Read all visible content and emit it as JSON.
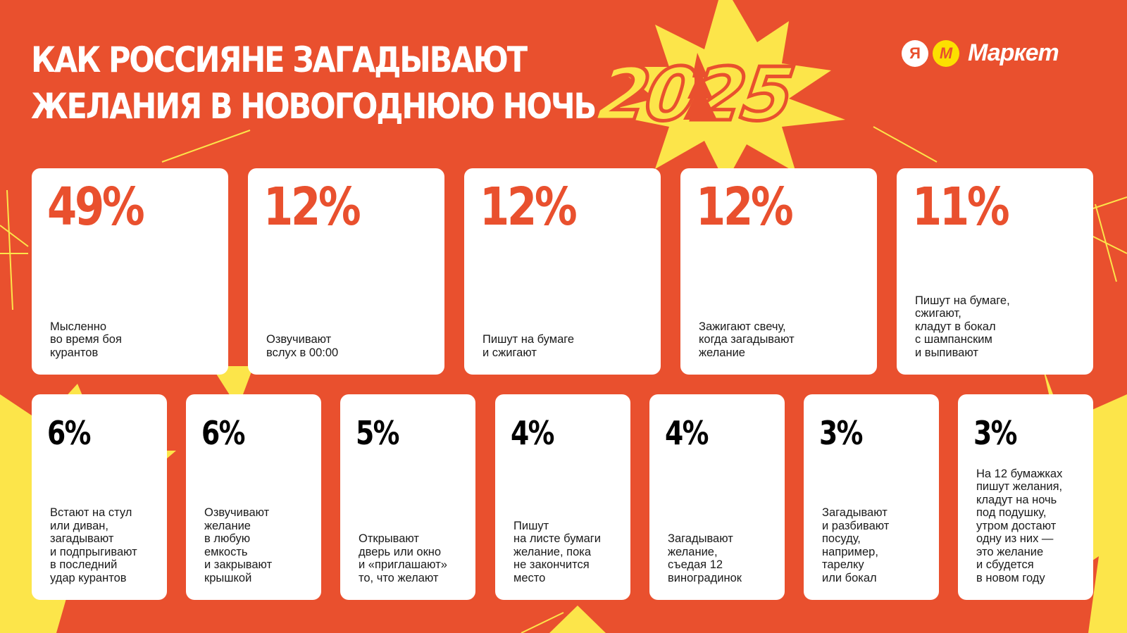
{
  "title": {
    "line1": "КАК РОССИЯНЕ ЗАГАДЫВАЮТ",
    "line2": "ЖЕЛАНИЯ В НОВОГОДНЮЮ НОЧЬ"
  },
  "year_badge": {
    "year": "2025"
  },
  "logo": {
    "ya": "Я",
    "m": "М",
    "text": "Маркет"
  },
  "colors": {
    "background": "#e9502e",
    "burst": "#fce54a",
    "accent_text": "#e9502e",
    "card": "#ffffff"
  },
  "top_cards": [
    {
      "percent": "49%",
      "text": "Мысленно\nво время боя\nкурантов"
    },
    {
      "percent": "12%",
      "text": "Озвучивают\nвслух в 00:00"
    },
    {
      "percent": "12%",
      "text": "Пишут на бумаге\nи сжигают"
    },
    {
      "percent": "12%",
      "text": "Зажигают свечу,\nкогда загадывают\nжелание"
    },
    {
      "percent": "11%",
      "text": "Пишут на бумаге,\nсжигают,\nкладут в бокал\nс шампанским\nи выпивают"
    }
  ],
  "bottom_cards": [
    {
      "percent": "6%",
      "text": "Встают на стул\nили диван,\nзагадывают\nи подпрыгивают\nв последний\nудар курантов"
    },
    {
      "percent": "6%",
      "text": "Озвучивают\nжелание\nв любую\nемкость\nи закрывают\nкрышкой"
    },
    {
      "percent": "5%",
      "text": "Открывают\nдверь или окно\nи «приглашают»\nто, что желают"
    },
    {
      "percent": "4%",
      "text": "Пишут\nна листе бумаги\nжелание, пока\nне закончится\nместо"
    },
    {
      "percent": "4%",
      "text": "Загадывают\nжелание,\nсъедая 12\nвиноградинок"
    },
    {
      "percent": "3%",
      "text": "Загадывают\nи разбивают\nпосуду,\nнапример,\nтарелку\nили бокал"
    },
    {
      "percent": "3%",
      "text": "На 12 бумажках\nпишут желания,\nкладут на ночь\nпод подушку,\nутром достают\nодну из них —\nэто желание\nи сбудется\nв новом году"
    }
  ]
}
